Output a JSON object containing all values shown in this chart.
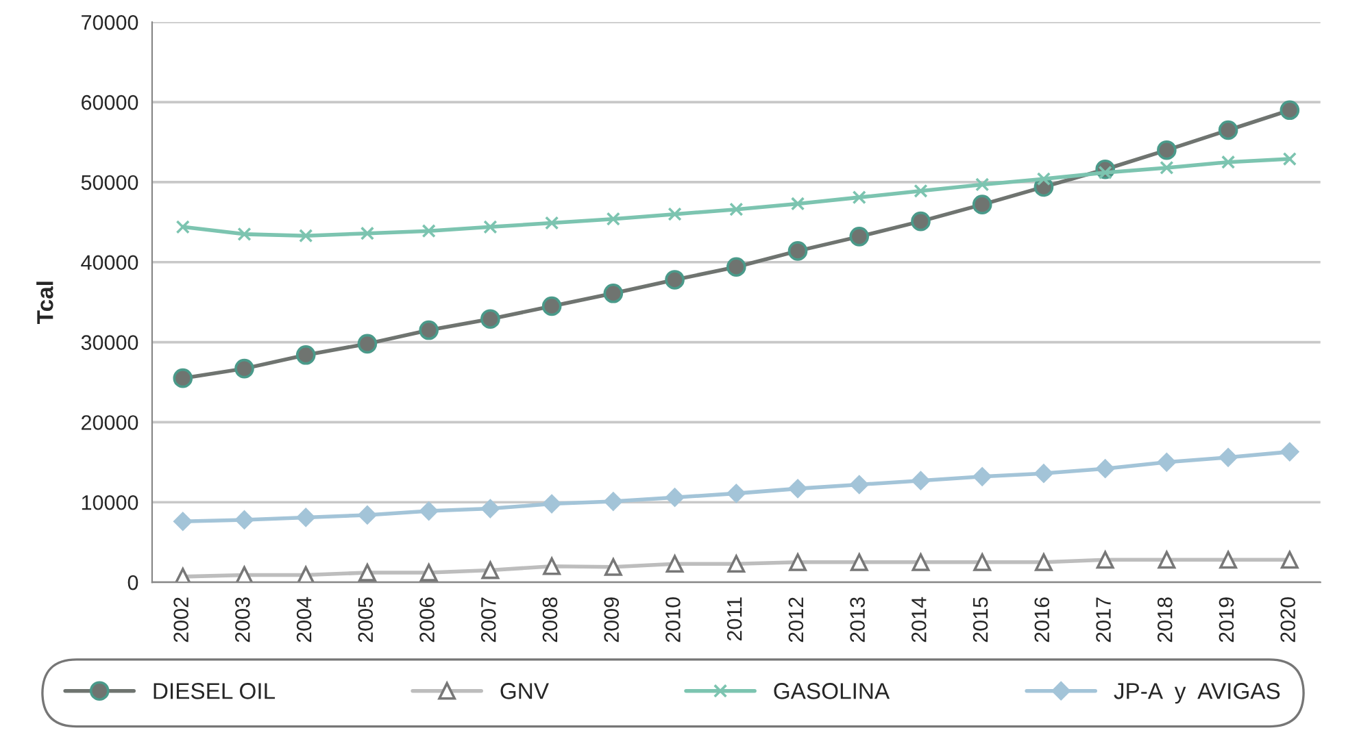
{
  "chart_data": {
    "type": "line",
    "ylabel": "Tcal",
    "categories": [
      "2002",
      "2003",
      "2004",
      "2005",
      "2006",
      "2007",
      "2008",
      "2009",
      "2010",
      "2011",
      "2012",
      "2013",
      "2014",
      "2015",
      "2016",
      "2017",
      "2018",
      "2019",
      "2020"
    ],
    "series": [
      {
        "name": "DIESEL OIL",
        "color": "#6f7470",
        "marker": "circle",
        "values": [
          25500,
          26700,
          28400,
          29800,
          31500,
          32900,
          34500,
          36100,
          37800,
          39400,
          41400,
          43200,
          45100,
          47200,
          49400,
          51600,
          54000,
          56500,
          59000
        ]
      },
      {
        "name": "GNV",
        "color": "#bdbdbd",
        "marker": "triangle",
        "values": [
          700,
          900,
          900,
          1200,
          1200,
          1500,
          2000,
          1900,
          2300,
          2300,
          2500,
          2500,
          2500,
          2500,
          2500,
          2800,
          2800,
          2800,
          2800
        ]
      },
      {
        "name": "GASOLINA",
        "color": "#7cc4b0",
        "marker": "cross",
        "values": [
          44400,
          43500,
          43300,
          43600,
          43900,
          44400,
          44900,
          45400,
          46000,
          46600,
          47300,
          48100,
          48900,
          49700,
          50400,
          51200,
          51800,
          52500,
          52900
        ]
      },
      {
        "name": "JP-A  y  AVIGAS",
        "color": "#a3c4d8",
        "marker": "diamond",
        "values": [
          7600,
          7800,
          8100,
          8400,
          8900,
          9200,
          9800,
          10100,
          10600,
          11100,
          11700,
          12200,
          12700,
          13200,
          13600,
          14200,
          15000,
          15600,
          16300
        ]
      }
    ],
    "ylim": [
      0,
      70000
    ],
    "yticks": [
      0,
      10000,
      20000,
      30000,
      40000,
      50000,
      60000,
      70000
    ],
    "grid": "y",
    "legend": "bottom"
  }
}
